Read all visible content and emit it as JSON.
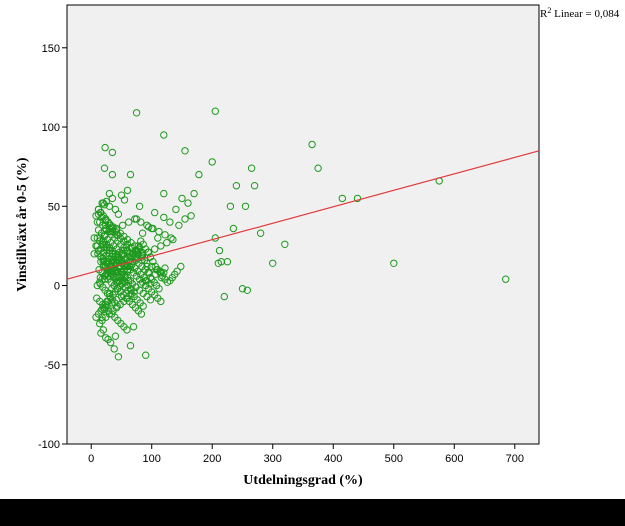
{
  "chart_data": {
    "type": "scatter",
    "title": "",
    "xlabel": "Utdelningsgrad (%)",
    "ylabel": "Vinstillväxt år 0-5 (%)",
    "xlim": [
      -40,
      740
    ],
    "ylim": [
      -100,
      177
    ],
    "x_ticks": [
      0,
      100,
      200,
      300,
      400,
      500,
      600,
      700
    ],
    "y_ticks": [
      -100,
      -50,
      0,
      50,
      100,
      150
    ],
    "grid": false,
    "r2_label": "R² Linear = 0,084",
    "r2_prefix": "R",
    "r2_sup": "2",
    "r2_suffix": " Linear = 0,084",
    "fit_line": {
      "x": [
        -40,
        740
      ],
      "y": [
        4,
        85
      ]
    },
    "colors": {
      "points": "#1e9a1e",
      "fit_line": "#e03c3c",
      "plot_bg": "#f0f0f0",
      "axis": "#000000"
    },
    "points": {
      "x": [
        75,
        205,
        120,
        23,
        35,
        155,
        200,
        22,
        365,
        375,
        265,
        178,
        35,
        65,
        575,
        240,
        270,
        120,
        150,
        170,
        160,
        230,
        280,
        320,
        212,
        205,
        215,
        225,
        255,
        210,
        300,
        415,
        440,
        500,
        685,
        140,
        120,
        105,
        130,
        145,
        155,
        165,
        95,
        100,
        85,
        110,
        235,
        250,
        220,
        258,
        75,
        45,
        40,
        30,
        22,
        20,
        15,
        10,
        5,
        25,
        35,
        50,
        80,
        60,
        55,
        30,
        25,
        18,
        12,
        8,
        20,
        40,
        45,
        65,
        90,
        70,
        38,
        32,
        28,
        24,
        16,
        14,
        18,
        22,
        26,
        30,
        34,
        38,
        42,
        46,
        50,
        54,
        58,
        62,
        66,
        70,
        74,
        78,
        82,
        86,
        90,
        94,
        98,
        102,
        106,
        110,
        114,
        118,
        122,
        126,
        130,
        134,
        138,
        142,
        148,
        15,
        20,
        25,
        30,
        35,
        40,
        45,
        50,
        55,
        60,
        65,
        70,
        75,
        80,
        85,
        90,
        95,
        100,
        105,
        110,
        115,
        12,
        17,
        22,
        27,
        32,
        37,
        42,
        47,
        52,
        57,
        62,
        67,
        72,
        77,
        82,
        87,
        92,
        97,
        14,
        19,
        24,
        29,
        34,
        39,
        44,
        49,
        54,
        59,
        64,
        69,
        74,
        79,
        84,
        89,
        94,
        16,
        21,
        26,
        31,
        36,
        41,
        46,
        51,
        56,
        61,
        66,
        71,
        76,
        81,
        86,
        13,
        18,
        23,
        28,
        33,
        38,
        43,
        48,
        53,
        58,
        63,
        68,
        73,
        78,
        83,
        11,
        16,
        21,
        26,
        31,
        36,
        41,
        46,
        51,
        56,
        61,
        66,
        71,
        10,
        15,
        20,
        25,
        30,
        35,
        40,
        45,
        50,
        55,
        60,
        65,
        9,
        14,
        19,
        24,
        29,
        34,
        39,
        44,
        49,
        54,
        59,
        12,
        18,
        24,
        30,
        36,
        42,
        48,
        54,
        60,
        66,
        72,
        78,
        84,
        20,
        28,
        36,
        44,
        52,
        60,
        68,
        76,
        84,
        92,
        100,
        108,
        116,
        15,
        25,
        35,
        45,
        55,
        65,
        75,
        85,
        95,
        105,
        115,
        125,
        135,
        22,
        32,
        42,
        52,
        62,
        72,
        82,
        92,
        102,
        112,
        122,
        132,
        18,
        26,
        34,
        42,
        50,
        58,
        66,
        74,
        82,
        90,
        98,
        106,
        114,
        122,
        10,
        14,
        18,
        22,
        26,
        30,
        34,
        38,
        42,
        46,
        50,
        54,
        58,
        8,
        12,
        16,
        20,
        24,
        28,
        32,
        36,
        40,
        44,
        48,
        52,
        10,
        14,
        18,
        22,
        26,
        30,
        34,
        38,
        42,
        46,
        12,
        16,
        20,
        24,
        28,
        32,
        36,
        40,
        44,
        15,
        19,
        23,
        27,
        31,
        35,
        39,
        43,
        20,
        25,
        30,
        35,
        40,
        45,
        50,
        55,
        60,
        22,
        28,
        34,
        40,
        46,
        52,
        58,
        64,
        70,
        76,
        24,
        30,
        36,
        42,
        48,
        54,
        60,
        66,
        72,
        78,
        84,
        18,
        24,
        30,
        36,
        42,
        48,
        54,
        60,
        66,
        20,
        26,
        32,
        38,
        44,
        50,
        56,
        62,
        68,
        74,
        80,
        86,
        92,
        98,
        5,
        8,
        12,
        16,
        20,
        24,
        28,
        32,
        36,
        40,
        44,
        48,
        52,
        56,
        60,
        64,
        68,
        72,
        76,
        80,
        84,
        88,
        92,
        96,
        100,
        104,
        108,
        112,
        116,
        120
      ],
      "y": [
        109,
        110,
        95,
        87,
        84,
        85,
        78,
        74,
        89,
        74,
        74,
        70,
        70,
        70,
        66,
        63,
        63,
        58,
        55,
        58,
        52,
        50,
        33,
        26,
        22,
        30,
        15,
        15,
        50,
        14,
        14,
        55,
        55,
        14,
        4,
        48,
        43,
        46,
        40,
        38,
        42,
        44,
        37,
        36,
        33,
        30,
        36,
        -2,
        -7,
        -3,
        42,
        45,
        48,
        50,
        51,
        52,
        46,
        40,
        30,
        35,
        55,
        57,
        50,
        60,
        54,
        58,
        53,
        52,
        48,
        44,
        -28,
        -32,
        -45,
        -38,
        -44,
        -26,
        -40,
        -36,
        -34,
        -33,
        -30,
        -24,
        -20,
        -15,
        -10,
        -5,
        -2,
        0,
        2,
        5,
        8,
        10,
        12,
        15,
        18,
        20,
        22,
        25,
        28,
        26,
        23,
        21,
        18,
        15,
        12,
        10,
        8,
        6,
        4,
        2,
        3,
        5,
        7,
        9,
        12,
        30,
        28,
        26,
        24,
        22,
        20,
        18,
        16,
        14,
        12,
        10,
        8,
        6,
        4,
        2,
        0,
        -2,
        -4,
        -6,
        -8,
        -10,
        35,
        33,
        31,
        29,
        27,
        25,
        23,
        21,
        19,
        17,
        15,
        13,
        11,
        9,
        7,
        5,
        3,
        1,
        40,
        38,
        36,
        34,
        32,
        30,
        28,
        26,
        24,
        22,
        20,
        18,
        16,
        14,
        12,
        10,
        8,
        15,
        13,
        11,
        9,
        7,
        5,
        3,
        1,
        -1,
        -3,
        -5,
        -7,
        -9,
        -11,
        -13,
        10,
        8,
        6,
        4,
        2,
        0,
        -2,
        -4,
        -6,
        -8,
        -10,
        -12,
        -14,
        -16,
        -18,
        20,
        18,
        16,
        14,
        12,
        10,
        8,
        6,
        4,
        2,
        0,
        -2,
        -4,
        25,
        23,
        21,
        19,
        17,
        15,
        13,
        11,
        9,
        7,
        5,
        3,
        -8,
        -10,
        -12,
        -14,
        -16,
        -18,
        -20,
        -22,
        -24,
        -26,
        -28,
        45,
        43,
        41,
        39,
        37,
        35,
        33,
        31,
        29,
        27,
        25,
        23,
        21,
        12,
        14,
        16,
        18,
        20,
        22,
        20,
        18,
        16,
        14,
        12,
        10,
        8,
        5,
        7,
        9,
        11,
        13,
        15,
        17,
        19,
        21,
        23,
        25,
        27,
        29,
        32,
        34,
        36,
        38,
        40,
        42,
        40,
        38,
        36,
        34,
        32,
        30,
        -15,
        -13,
        -11,
        -9,
        -7,
        -5,
        -3,
        -1,
        1,
        3,
        5,
        7,
        9,
        11,
        0,
        2,
        4,
        6,
        8,
        10,
        12,
        14,
        16,
        18,
        20,
        22,
        24,
        -20,
        -18,
        -16,
        -14,
        -12,
        -10,
        -8,
        -6,
        -4,
        -2,
        0,
        2,
        30,
        28,
        26,
        24,
        22,
        20,
        18,
        16,
        14,
        12,
        48,
        46,
        44,
        42,
        40,
        38,
        36,
        34,
        32,
        1,
        -1,
        -3,
        -5,
        -7,
        -9,
        -11,
        -13,
        26,
        24,
        22,
        20,
        18,
        16,
        14,
        12,
        10,
        4,
        6,
        8,
        10,
        12,
        14,
        16,
        18,
        20,
        22,
        38,
        36,
        34,
        32,
        30,
        28,
        26,
        24,
        22,
        20,
        18,
        -22,
        -20,
        -18,
        -16,
        -14,
        -12,
        -10,
        -8,
        -6,
        17,
        15,
        13,
        11,
        9,
        7,
        5,
        3,
        1,
        -1,
        -3,
        -5,
        -7,
        -9,
        20,
        25,
        22,
        18,
        15,
        12,
        10,
        8,
        6,
        4,
        2,
        0,
        3,
        6,
        9,
        12,
        15,
        18,
        21,
        24,
        20,
        16,
        12,
        8,
        4,
        2,
        0,
        -2,
        5,
        8
      ]
    }
  }
}
